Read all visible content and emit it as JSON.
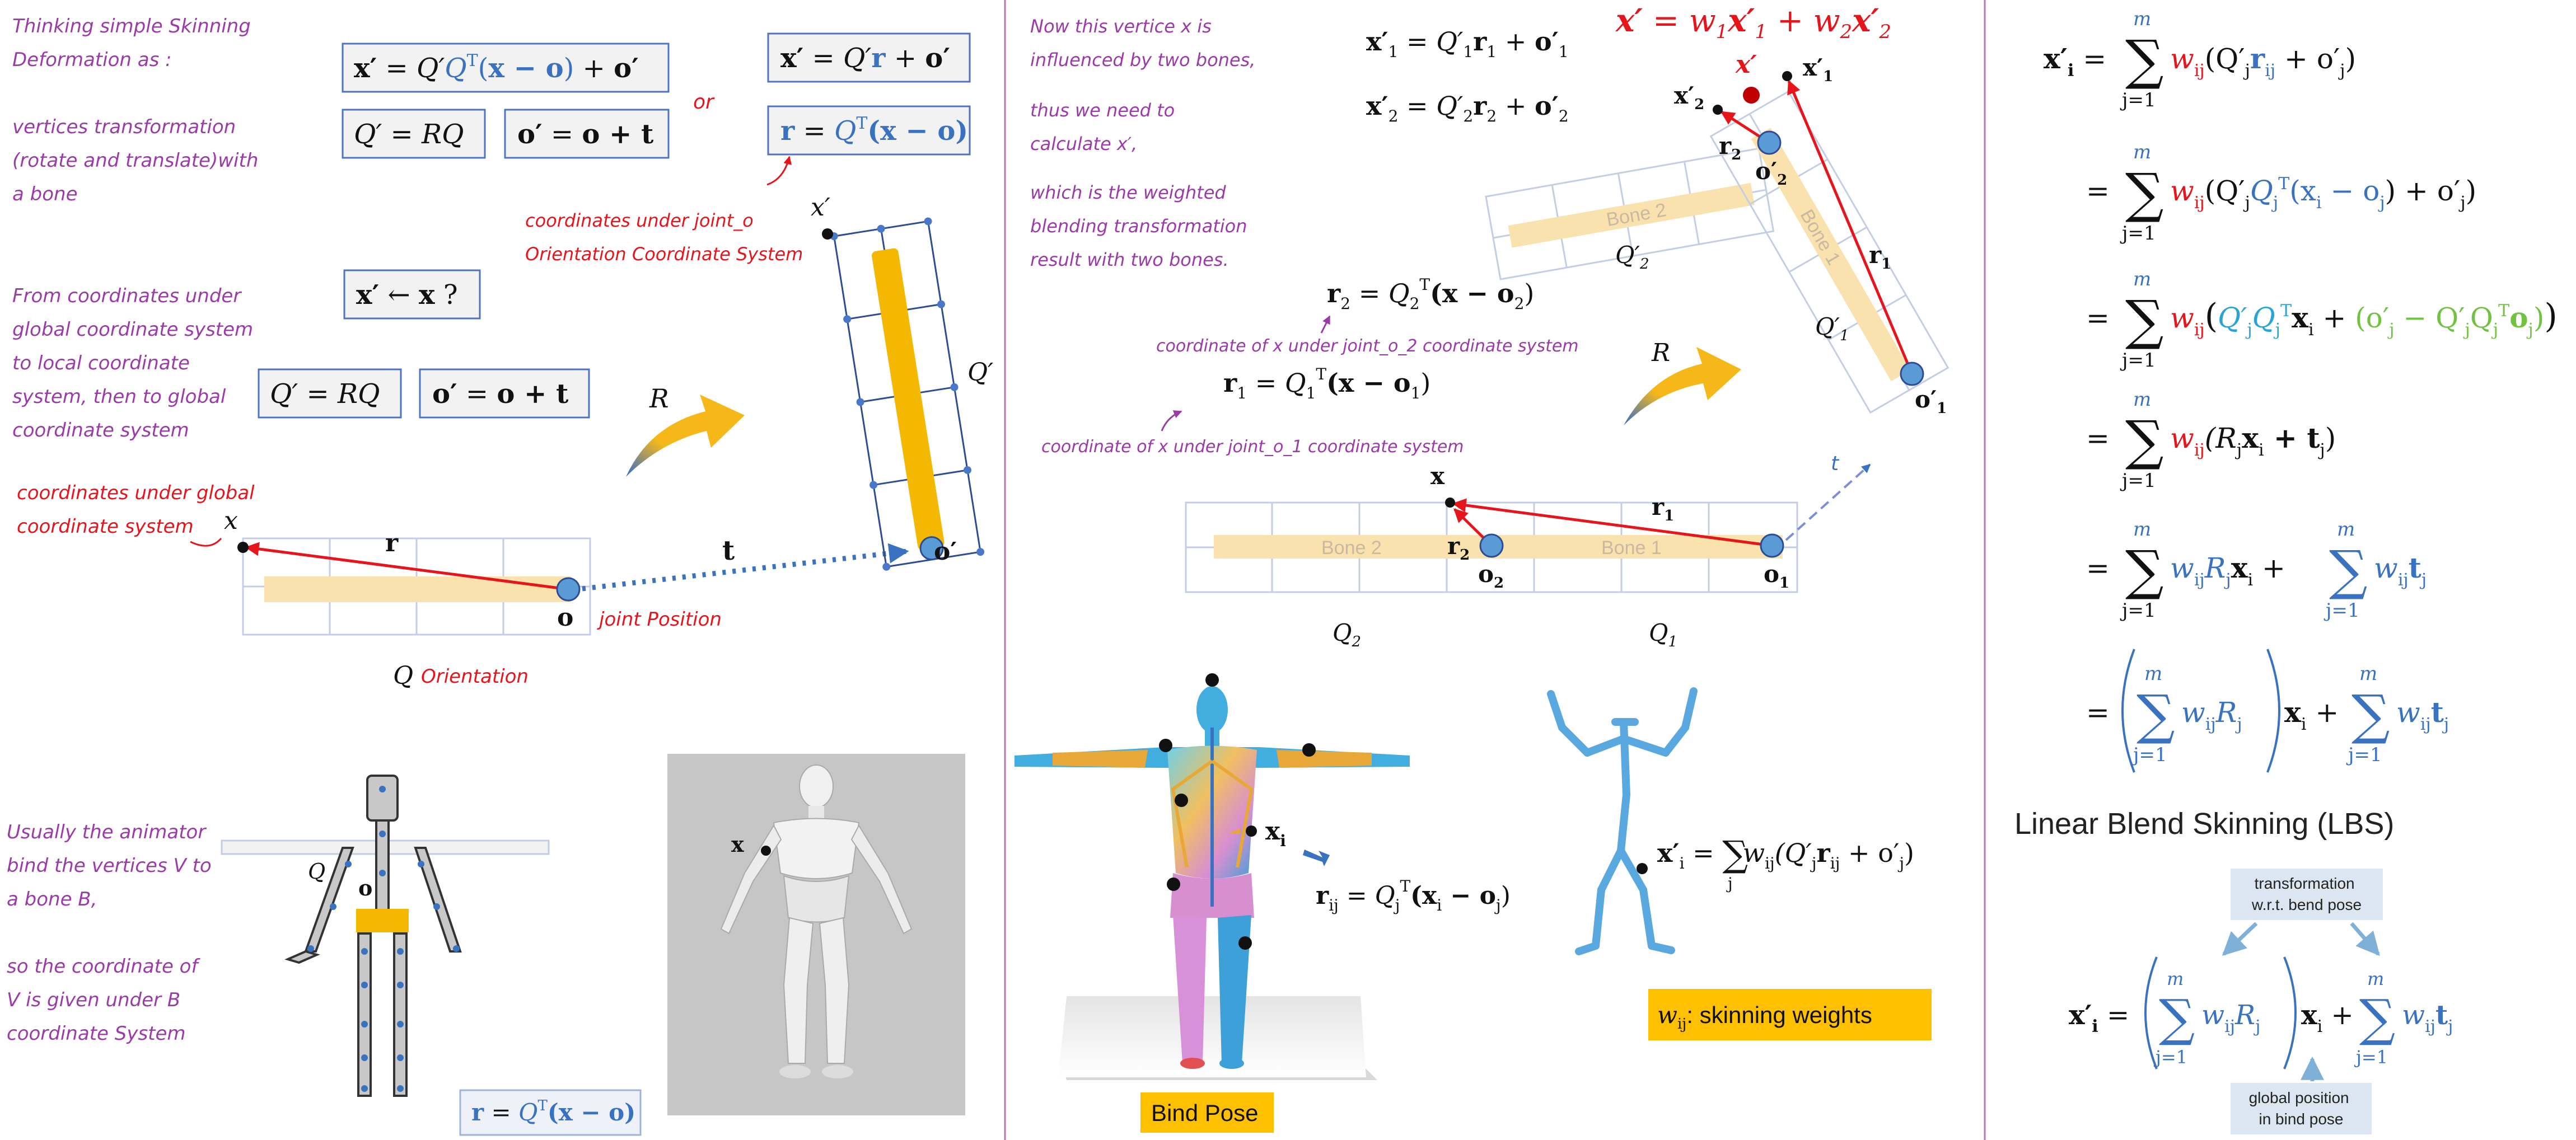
{
  "colors": {
    "purple": "#9b3aa8",
    "red": "#e8141c",
    "blue": "#3a72c2",
    "dark": "#222222",
    "bone_fill": "#f9e2ad",
    "bone_solid": "#f5b800",
    "grid": "#c3cde4",
    "grid_dark": "#2e4c94",
    "joint": "#5b9bd5",
    "box_border": "#4e73c0",
    "box_fill": "#f2f2f2",
    "cyan": "#28a4d9",
    "green": "#72c242",
    "label_bg": "#dce6f2",
    "yellow_label": "#ffc000",
    "divider": "#b577b6"
  },
  "icons": {
    "bend_arrow_1": "curved-arrow-icon",
    "bend_arrow_2": "curved-arrow-icon",
    "small_arrow": "blue-arrow-icon"
  },
  "panel1": {
    "intro_note": [
      "Thinking simple Skinning",
      "Deformation as :"
    ],
    "vertex_note": [
      "vertices transformation",
      "(rotate and translate)with",
      "a bone"
    ],
    "global_note": [
      "From coordinates under",
      "global coordinate system",
      "to local coordinate",
      "system, then to global",
      "coordinate system"
    ],
    "global_coord_note": [
      "coordinates under global",
      "coordinate system"
    ],
    "or_label": "or",
    "joint_orient_note": [
      "coordinates under joint_o",
      "Orientation Coordinate System"
    ],
    "joint_position_note": "joint Position",
    "orientation_word": "Orientation",
    "animator_note": [
      "Usually the animator",
      "bind the vertices V to",
      "a bone B,"
    ],
    "coord_note": [
      "so the coordinate of",
      "V is given under B",
      "coordinate System"
    ],
    "labels": {
      "x": "x",
      "x_prime": "x′",
      "r": "r",
      "o": "o",
      "o_prime": "o′",
      "t": "t",
      "Q": "Q",
      "Q_prime": "Q′",
      "R": "R"
    },
    "eq_main": [
      "x′",
      " = ",
      "Q′",
      "Q",
      "T",
      "(",
      "x − o",
      ")",
      " + ",
      "o′"
    ],
    "eq_alt": [
      "x′",
      " = ",
      "Q′",
      "r",
      " + ",
      "o′"
    ],
    "eq_QR": [
      "Q′",
      " = ",
      "RQ"
    ],
    "eq_ot": [
      "o′",
      " = ",
      "o + t"
    ],
    "eq_r": [
      "r",
      " = ",
      "Q",
      "T",
      "(x − o)"
    ],
    "eq_arrow": [
      "x′",
      " ← ",
      "x",
      " ?"
    ],
    "eq_bottom": [
      "r",
      " = ",
      "Q",
      "T",
      "(x − o)"
    ]
  },
  "panel2": {
    "vertex_note": [
      "Now this vertice  x  is",
      "influenced by two bones,"
    ],
    "calc_note": [
      "thus we need to",
      "calculate x′,"
    ],
    "weighted_note": [
      "which is the weighted",
      "blending transformation",
      "result with two bones."
    ],
    "coord2_note": "coordinate of x under joint_o_2 coordinate system",
    "coord1_note": "coordinate of x under joint_o_1 coordinate system",
    "eq_x1": [
      "x′",
      "1",
      " = ",
      "Q′",
      "1",
      "r",
      "1",
      " + ",
      "o′",
      "1"
    ],
    "eq_x2": [
      "x′",
      "2",
      " = ",
      "Q′",
      "2",
      "r",
      "2",
      " + ",
      "o′",
      "2"
    ],
    "eq_blend": [
      "x′",
      " = ",
      "w",
      "1",
      "x′",
      "1",
      " + ",
      "w",
      "2",
      "x′",
      "2"
    ],
    "eq_r2": [
      "r",
      "2",
      " = ",
      "Q",
      "2",
      "T",
      "(x − o",
      "2",
      ")"
    ],
    "eq_r1": [
      "r",
      "1",
      " = ",
      "Q",
      "1",
      "T",
      "(x − o",
      "1",
      ")"
    ],
    "bone1_label": "Bone 1",
    "bone2_label": "Bone 2",
    "labels": {
      "x": "x",
      "x_prime": "x′",
      "x1p": "x′",
      "x2p": "x′",
      "r1": "r",
      "r2": "r",
      "o1": "o",
      "o2": "o",
      "o1p": "o′",
      "o2p": "o′",
      "Q1": "Q",
      "Q2": "Q",
      "Q1p": "Q′",
      "Q2p": "Q′",
      "t": "t",
      "R": "R",
      "sub1": "1",
      "sub2": "2"
    },
    "bind_pose_label": "Bind Pose",
    "skinning_weights_label": ": skinning weights",
    "w_ij": "w",
    "w_sub": "ij",
    "eq_rij": [
      "r",
      "ij",
      " = ",
      "Q",
      "j",
      "T",
      "(x",
      "i",
      " − o",
      "j",
      ")"
    ],
    "eq_xi_small": [
      "x′",
      "i",
      " = ",
      "∑",
      "j",
      "w",
      "ij",
      "(Q′",
      "j",
      "r",
      "ij",
      " + o′",
      "j",
      ")"
    ],
    "xi_label": "x",
    "xi_sub": "i"
  },
  "panel3": {
    "lbs_title": "Linear Blend Skinning (LBS)",
    "sum_top": "m",
    "sum_bottom": "j=1",
    "eq1": [
      "x′",
      "i",
      " = ",
      "w",
      "ij",
      "(Q′",
      "j",
      "r",
      "ij",
      " + o′",
      "j",
      ")"
    ],
    "eq2": [
      "= ",
      "w",
      "ij",
      "(Q′",
      "j",
      "Q",
      "j",
      "T",
      "(x",
      "i",
      " − o",
      "j",
      ") + o′",
      "j",
      ")"
    ],
    "eq3": [
      "= ",
      "w",
      "ij",
      "(",
      "Q′",
      "j",
      "Q",
      "j",
      "T",
      "x",
      "i",
      " + ",
      "(o′",
      "j",
      " − Q′",
      "j",
      "Q",
      "j",
      "T",
      "o",
      "j",
      ")",
      ")"
    ],
    "eq4": [
      "= ",
      "w",
      "ij",
      "(R",
      "j",
      "x",
      "i",
      " + t",
      "j",
      ")"
    ],
    "eq5": [
      "= ",
      "w",
      "ij",
      "R",
      "j",
      "x",
      "i",
      " + ",
      "w",
      "ij",
      "t",
      "j"
    ],
    "eq6": [
      "= ",
      "w",
      "ij",
      "R",
      "j",
      "x",
      "i",
      " + ",
      "w",
      "ij",
      "t",
      "j"
    ],
    "eq7": [
      "x′",
      "i",
      " = ",
      "w",
      "ij",
      "R",
      "j",
      "x",
      "i",
      " + ",
      "w",
      "ij",
      "t",
      "j"
    ],
    "transform_note": [
      "transformation",
      "w.r.t. bend pose"
    ],
    "global_note": [
      "global position",
      "in bind pose"
    ]
  }
}
